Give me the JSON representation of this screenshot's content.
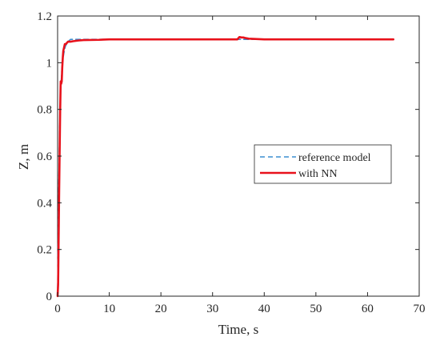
{
  "chart_data": {
    "type": "line",
    "title": "",
    "xlabel": "Time, s",
    "ylabel": "Z, m",
    "xlim": [
      0,
      70
    ],
    "ylim": [
      0,
      1.2
    ],
    "xticks": [
      0,
      10,
      20,
      30,
      40,
      50,
      60,
      70
    ],
    "yticks": [
      0,
      0.2,
      0.4,
      0.6,
      0.8,
      1,
      1.2
    ],
    "xtick_labels": [
      "0",
      "10",
      "20",
      "30",
      "40",
      "50",
      "60",
      "70"
    ],
    "ytick_labels": [
      "0",
      "0.2",
      "0.4",
      "0.6",
      "0.8",
      "1",
      "1.2"
    ],
    "grid": false,
    "legend_position": "center-right",
    "series": [
      {
        "name": "reference model",
        "color": "#3b8fd1",
        "style": "dashed",
        "x": [
          0,
          0.2,
          0.4,
          0.6,
          0.8,
          1.0,
          1.2,
          1.5,
          2.0,
          2.5,
          3.0,
          4.0,
          6.0,
          10,
          20,
          30,
          35,
          40,
          50,
          60,
          65
        ],
        "y": [
          0,
          0.42,
          0.72,
          0.88,
          0.96,
          1.01,
          1.04,
          1.07,
          1.09,
          1.1,
          1.1,
          1.1,
          1.1,
          1.1,
          1.1,
          1.1,
          1.1,
          1.1,
          1.1,
          1.1,
          1.1
        ]
      },
      {
        "name": "with NN",
        "color": "#e8111b",
        "style": "solid",
        "x": [
          0,
          0.1,
          0.3,
          0.5,
          0.6,
          0.7,
          0.8,
          0.9,
          1.0,
          1.1,
          1.2,
          1.4,
          1.6,
          2.0,
          2.5,
          3.0,
          4.0,
          5.0,
          8.0,
          10,
          15,
          20,
          25,
          30,
          34.8,
          35.2,
          35.6,
          36.0,
          36.5,
          37.0,
          40,
          45,
          50,
          55,
          60,
          65
        ],
        "y": [
          0,
          0.05,
          0.45,
          0.8,
          0.92,
          0.91,
          0.92,
          0.98,
          1.02,
          1.05,
          1.06,
          1.08,
          1.08,
          1.09,
          1.09,
          1.092,
          1.095,
          1.097,
          1.098,
          1.1,
          1.1,
          1.1,
          1.1,
          1.1,
          1.1,
          1.11,
          1.108,
          1.108,
          1.105,
          1.103,
          1.1,
          1.1,
          1.1,
          1.1,
          1.1,
          1.1
        ]
      }
    ]
  }
}
